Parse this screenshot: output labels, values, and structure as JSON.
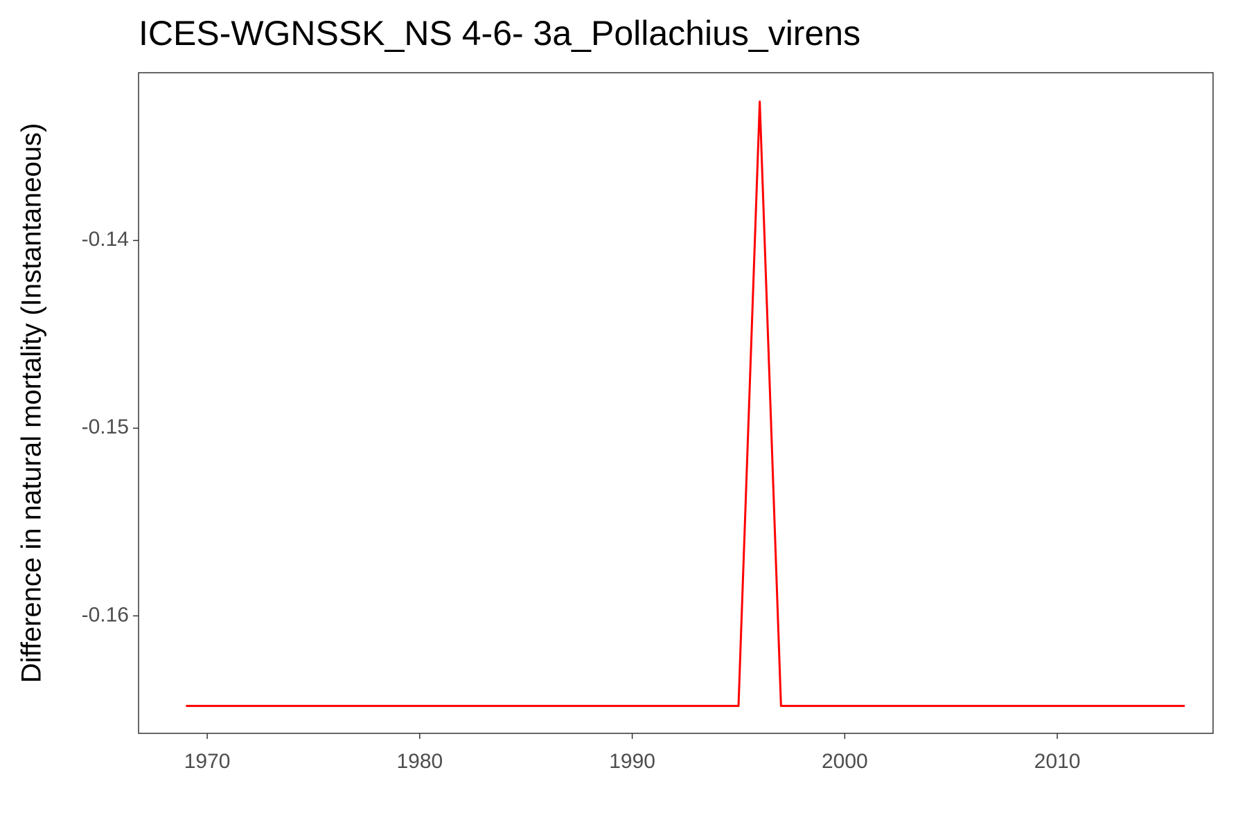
{
  "chart_data": {
    "type": "line",
    "title": "ICES-WGNSSK_NS 4-6- 3a_Pollachius_virens",
    "y_label": "Difference in natural mortality (Instantaneous)",
    "x": [
      1969,
      1970,
      1971,
      1972,
      1973,
      1974,
      1975,
      1976,
      1977,
      1978,
      1979,
      1980,
      1981,
      1982,
      1983,
      1984,
      1985,
      1986,
      1987,
      1988,
      1989,
      1990,
      1991,
      1992,
      1993,
      1994,
      1995,
      1996,
      1997,
      1998,
      1999,
      2000,
      2001,
      2002,
      2003,
      2004,
      2005,
      2006,
      2007,
      2008,
      2009,
      2010,
      2011,
      2012,
      2013,
      2014,
      2015,
      2016
    ],
    "series": [
      {
        "color": "#ff0000",
        "values": [
          -0.1648,
          -0.1648,
          -0.1648,
          -0.1648,
          -0.1648,
          -0.1648,
          -0.1648,
          -0.1648,
          -0.1648,
          -0.1648,
          -0.1648,
          -0.1648,
          -0.1648,
          -0.1648,
          -0.1648,
          -0.1648,
          -0.1648,
          -0.1648,
          -0.1648,
          -0.1648,
          -0.1648,
          -0.1648,
          -0.1648,
          -0.1648,
          -0.1648,
          -0.1648,
          -0.1648,
          -0.1326,
          -0.1648,
          -0.1648,
          -0.1648,
          -0.1648,
          -0.1648,
          -0.1648,
          -0.1648,
          -0.1648,
          -0.1648,
          -0.1648,
          -0.1648,
          -0.1648,
          -0.1648,
          -0.1648,
          -0.1648,
          -0.1648,
          -0.1648,
          -0.1648,
          -0.1648,
          -0.1648
        ]
      }
    ],
    "xlim": [
      1966.77,
      2017.33
    ],
    "xticks": [
      1970,
      1980,
      1990,
      2000,
      2010
    ],
    "ylim": [
      -0.16626,
      -0.13106
    ],
    "yticks": [
      -0.16,
      -0.15,
      -0.14
    ]
  }
}
